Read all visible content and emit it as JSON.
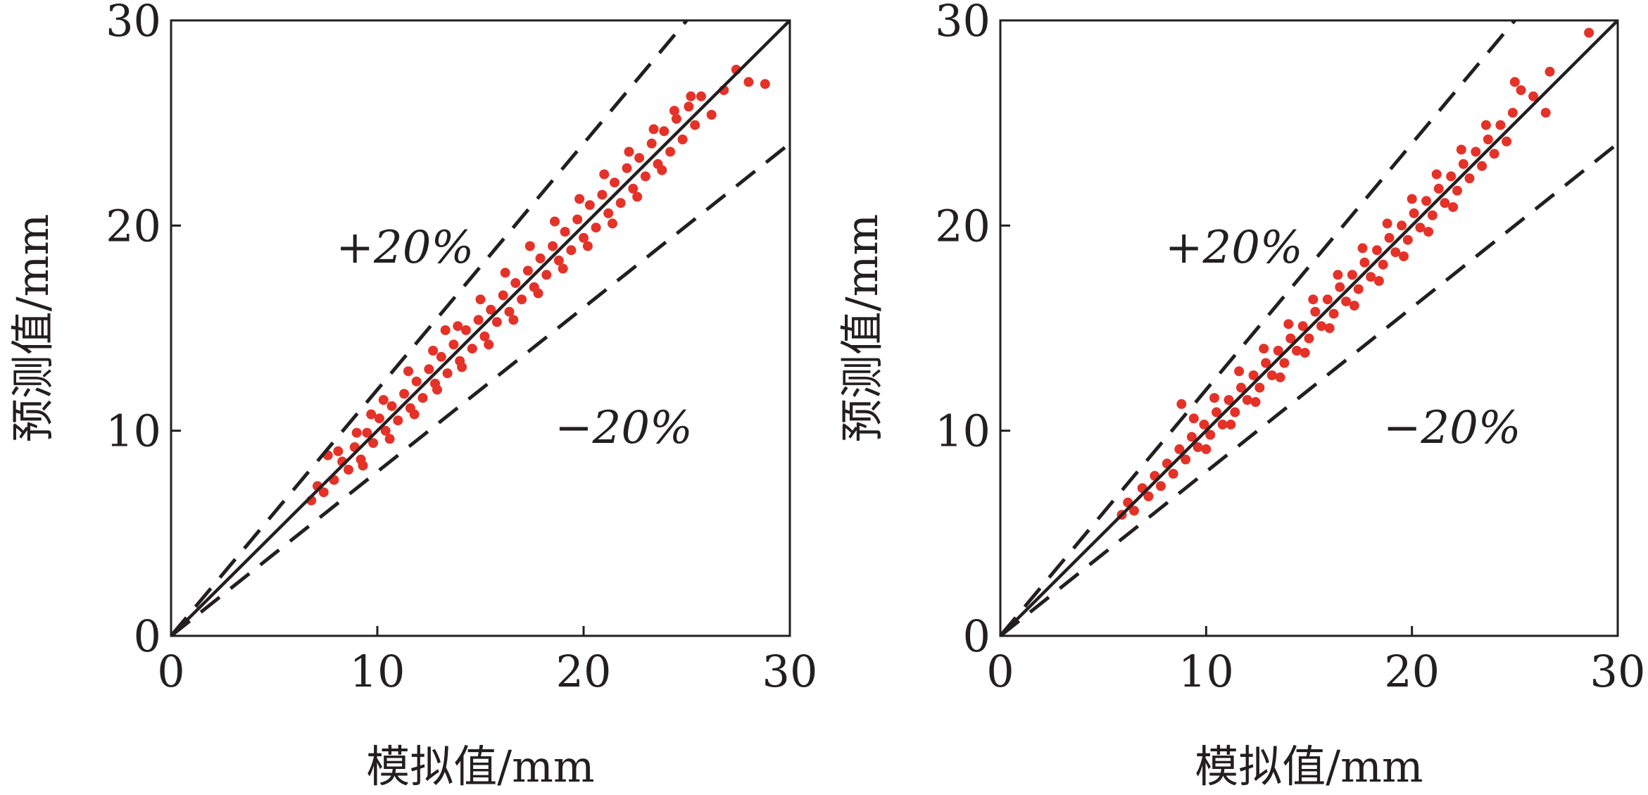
{
  "chart_data": [
    {
      "type": "scatter",
      "xlabel": "模拟值/mm",
      "ylabel": "预测值/mm",
      "xlim": [
        0,
        30
      ],
      "ylim": [
        0,
        30
      ],
      "xticks": [
        "0",
        "10",
        "20",
        "30"
      ],
      "yticks": [
        "0",
        "10",
        "20",
        "30"
      ],
      "grid": false,
      "reference_lines": [
        {
          "label": "",
          "slope": 1.0,
          "style": "solid"
        },
        {
          "label": "+20%",
          "slope": 1.2,
          "style": "dashed"
        },
        {
          "label": "−20%",
          "slope": 0.8,
          "style": "dashed"
        }
      ],
      "point_color": "#e53228",
      "series": [
        {
          "points": [
            [
              6.8,
              6.6
            ],
            [
              7.1,
              7.3
            ],
            [
              7.4,
              7.0
            ],
            [
              7.6,
              8.8
            ],
            [
              7.9,
              7.6
            ],
            [
              8.3,
              8.5
            ],
            [
              8.6,
              8.1
            ],
            [
              8.9,
              9.2
            ],
            [
              9.2,
              8.6
            ],
            [
              9.5,
              9.9
            ],
            [
              9.8,
              9.4
            ],
            [
              10.1,
              10.6
            ],
            [
              10.4,
              10.0
            ],
            [
              10.7,
              11.2
            ],
            [
              11.0,
              10.5
            ],
            [
              11.3,
              11.8
            ],
            [
              11.6,
              11.1
            ],
            [
              11.9,
              12.4
            ],
            [
              12.2,
              11.6
            ],
            [
              12.5,
              13.0
            ],
            [
              12.8,
              12.3
            ],
            [
              13.1,
              13.6
            ],
            [
              13.4,
              12.8
            ],
            [
              13.7,
              14.2
            ],
            [
              14.0,
              13.4
            ],
            [
              14.3,
              14.9
            ],
            [
              14.6,
              14.0
            ],
            [
              14.9,
              15.4
            ],
            [
              15.2,
              14.6
            ],
            [
              15.5,
              15.9
            ],
            [
              15.8,
              15.3
            ],
            [
              16.1,
              16.6
            ],
            [
              16.4,
              15.8
            ],
            [
              16.7,
              17.2
            ],
            [
              17.0,
              16.4
            ],
            [
              17.3,
              17.8
            ],
            [
              17.6,
              17.0
            ],
            [
              17.9,
              18.4
            ],
            [
              18.2,
              17.6
            ],
            [
              18.5,
              19.0
            ],
            [
              18.8,
              18.3
            ],
            [
              19.1,
              19.7
            ],
            [
              19.4,
              18.8
            ],
            [
              19.7,
              20.3
            ],
            [
              20.0,
              19.4
            ],
            [
              20.3,
              21.0
            ],
            [
              20.6,
              19.9
            ],
            [
              20.9,
              21.5
            ],
            [
              21.2,
              20.6
            ],
            [
              21.5,
              22.1
            ],
            [
              21.8,
              21.1
            ],
            [
              22.1,
              22.8
            ],
            [
              22.4,
              21.8
            ],
            [
              22.7,
              23.3
            ],
            [
              23.0,
              22.4
            ],
            [
              23.3,
              24.0
            ],
            [
              23.6,
              23.0
            ],
            [
              23.9,
              24.6
            ],
            [
              24.2,
              23.6
            ],
            [
              24.5,
              25.2
            ],
            [
              24.8,
              24.2
            ],
            [
              25.1,
              25.8
            ],
            [
              25.4,
              24.9
            ],
            [
              25.7,
              26.3
            ],
            [
              26.2,
              25.4
            ],
            [
              26.8,
              26.6
            ],
            [
              27.4,
              27.6
            ],
            [
              28.0,
              27.0
            ],
            [
              28.8,
              26.9
            ],
            [
              8.1,
              9.0
            ],
            [
              9.0,
              9.9
            ],
            [
              9.7,
              10.8
            ],
            [
              10.3,
              11.5
            ],
            [
              11.5,
              12.9
            ],
            [
              12.7,
              13.9
            ],
            [
              13.3,
              14.9
            ],
            [
              13.9,
              15.1
            ],
            [
              15.0,
              16.4
            ],
            [
              16.2,
              17.7
            ],
            [
              17.4,
              19.0
            ],
            [
              18.6,
              20.2
            ],
            [
              19.8,
              21.3
            ],
            [
              21.0,
              22.5
            ],
            [
              22.2,
              23.6
            ],
            [
              23.4,
              24.7
            ],
            [
              24.4,
              25.6
            ],
            [
              25.2,
              26.3
            ],
            [
              9.3,
              8.3
            ],
            [
              10.6,
              9.6
            ],
            [
              11.8,
              10.8
            ],
            [
              12.9,
              12.0
            ],
            [
              14.1,
              13.1
            ],
            [
              15.4,
              14.2
            ],
            [
              16.6,
              15.4
            ],
            [
              17.8,
              16.7
            ],
            [
              19.0,
              17.9
            ],
            [
              20.2,
              19.0
            ],
            [
              21.4,
              20.1
            ],
            [
              22.6,
              21.4
            ],
            [
              23.8,
              22.7
            ]
          ]
        }
      ]
    },
    {
      "type": "scatter",
      "xlabel": "模拟值/mm",
      "ylabel": "预测值/mm",
      "xlim": [
        0,
        30
      ],
      "ylim": [
        0,
        30
      ],
      "xticks": [
        "0",
        "10",
        "20",
        "30"
      ],
      "yticks": [
        "0",
        "10",
        "20",
        "30"
      ],
      "grid": false,
      "reference_lines": [
        {
          "label": "",
          "slope": 1.0,
          "style": "solid"
        },
        {
          "label": "+20%",
          "slope": 1.2,
          "style": "dashed"
        },
        {
          "label": "−20%",
          "slope": 0.8,
          "style": "dashed"
        }
      ],
      "point_color": "#e53228",
      "series": [
        {
          "points": [
            [
              5.9,
              5.9
            ],
            [
              6.2,
              6.5
            ],
            [
              6.5,
              6.1
            ],
            [
              6.9,
              7.2
            ],
            [
              7.2,
              6.8
            ],
            [
              7.5,
              7.8
            ],
            [
              7.8,
              7.3
            ],
            [
              8.1,
              8.4
            ],
            [
              8.4,
              7.9
            ],
            [
              8.7,
              9.1
            ],
            [
              8.8,
              11.3
            ],
            [
              9.0,
              8.6
            ],
            [
              9.3,
              9.7
            ],
            [
              9.6,
              9.2
            ],
            [
              9.9,
              10.3
            ],
            [
              10.2,
              9.8
            ],
            [
              10.5,
              10.9
            ],
            [
              10.8,
              10.3
            ],
            [
              11.1,
              11.5
            ],
            [
              11.4,
              10.9
            ],
            [
              11.7,
              12.1
            ],
            [
              12.0,
              11.5
            ],
            [
              12.3,
              12.7
            ],
            [
              12.6,
              12.1
            ],
            [
              12.9,
              13.3
            ],
            [
              13.2,
              12.7
            ],
            [
              13.5,
              13.9
            ],
            [
              13.8,
              13.3
            ],
            [
              14.1,
              14.5
            ],
            [
              14.4,
              13.9
            ],
            [
              14.7,
              15.1
            ],
            [
              15.0,
              14.5
            ],
            [
              15.3,
              15.8
            ],
            [
              15.6,
              15.1
            ],
            [
              15.9,
              16.4
            ],
            [
              16.2,
              15.7
            ],
            [
              16.5,
              17.0
            ],
            [
              16.8,
              16.3
            ],
            [
              17.1,
              17.6
            ],
            [
              17.4,
              16.9
            ],
            [
              17.7,
              18.2
            ],
            [
              18.0,
              17.5
            ],
            [
              18.3,
              18.8
            ],
            [
              18.6,
              18.1
            ],
            [
              18.9,
              19.4
            ],
            [
              19.2,
              18.7
            ],
            [
              19.5,
              20.0
            ],
            [
              19.8,
              19.3
            ],
            [
              20.1,
              20.6
            ],
            [
              20.4,
              19.9
            ],
            [
              20.7,
              21.2
            ],
            [
              21.0,
              20.5
            ],
            [
              21.3,
              21.8
            ],
            [
              21.6,
              21.1
            ],
            [
              21.9,
              22.4
            ],
            [
              22.2,
              21.7
            ],
            [
              22.5,
              23.0
            ],
            [
              22.8,
              22.3
            ],
            [
              23.1,
              23.6
            ],
            [
              23.4,
              22.9
            ],
            [
              23.7,
              24.2
            ],
            [
              24.0,
              23.5
            ],
            [
              24.3,
              24.9
            ],
            [
              24.6,
              24.1
            ],
            [
              24.9,
              25.5
            ],
            [
              25.3,
              26.6
            ],
            [
              25.9,
              26.3
            ],
            [
              26.5,
              25.5
            ],
            [
              26.7,
              27.5
            ],
            [
              28.6,
              29.4
            ],
            [
              25.0,
              27.0
            ],
            [
              9.4,
              10.6
            ],
            [
              10.4,
              11.6
            ],
            [
              11.6,
              12.9
            ],
            [
              12.8,
              14.0
            ],
            [
              14.0,
              15.2
            ],
            [
              15.2,
              16.4
            ],
            [
              16.4,
              17.6
            ],
            [
              17.6,
              18.9
            ],
            [
              18.8,
              20.1
            ],
            [
              20.0,
              21.3
            ],
            [
              21.2,
              22.5
            ],
            [
              22.4,
              23.7
            ],
            [
              23.6,
              24.9
            ],
            [
              10.0,
              9.1
            ],
            [
              11.2,
              10.3
            ],
            [
              12.4,
              11.4
            ],
            [
              13.6,
              12.6
            ],
            [
              14.8,
              13.8
            ],
            [
              16.0,
              15.0
            ],
            [
              17.2,
              16.1
            ],
            [
              18.4,
              17.3
            ],
            [
              19.6,
              18.5
            ],
            [
              20.8,
              19.7
            ],
            [
              22.0,
              20.9
            ]
          ]
        }
      ]
    }
  ]
}
